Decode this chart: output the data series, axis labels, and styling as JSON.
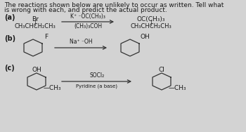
{
  "title_line1": "The reactions shown below are unlikely to occur as written. Tell what",
  "title_line2": "is wrong with each, and predict the actual product.",
  "bg_color": "#d3d3d3",
  "text_color": "#1a1a1a",
  "fs": 6.5,
  "fs_small": 5.5,
  "fs_label": 7.0,
  "reactions": {
    "a": {
      "label": "(a)",
      "reactant_br": "Br",
      "reactant_bar": "|",
      "reactant": "CH₃CHCH₂CH₃",
      "arrow_top": "K⁺ ⁻OC(CH₃)₃",
      "arrow_bot": "(CH₃)₃COH",
      "product_top": "OC(CH₃)₃",
      "product_bar": "|",
      "product": "CH₃CHCH₂CH₃"
    },
    "b": {
      "label": "(b)",
      "reactant_sub": "F",
      "arrow_label": "Na⁺ ⁻OH",
      "product_sub": "OH"
    },
    "c": {
      "label": "(c)",
      "reactant_sub1": "OH",
      "reactant_sub2": "—CH₃",
      "arrow_top": "SOCl₂",
      "arrow_bot": "Pyridine (a base)",
      "product_sub1": "Cl",
      "product_sub2": "—CH₃"
    }
  }
}
